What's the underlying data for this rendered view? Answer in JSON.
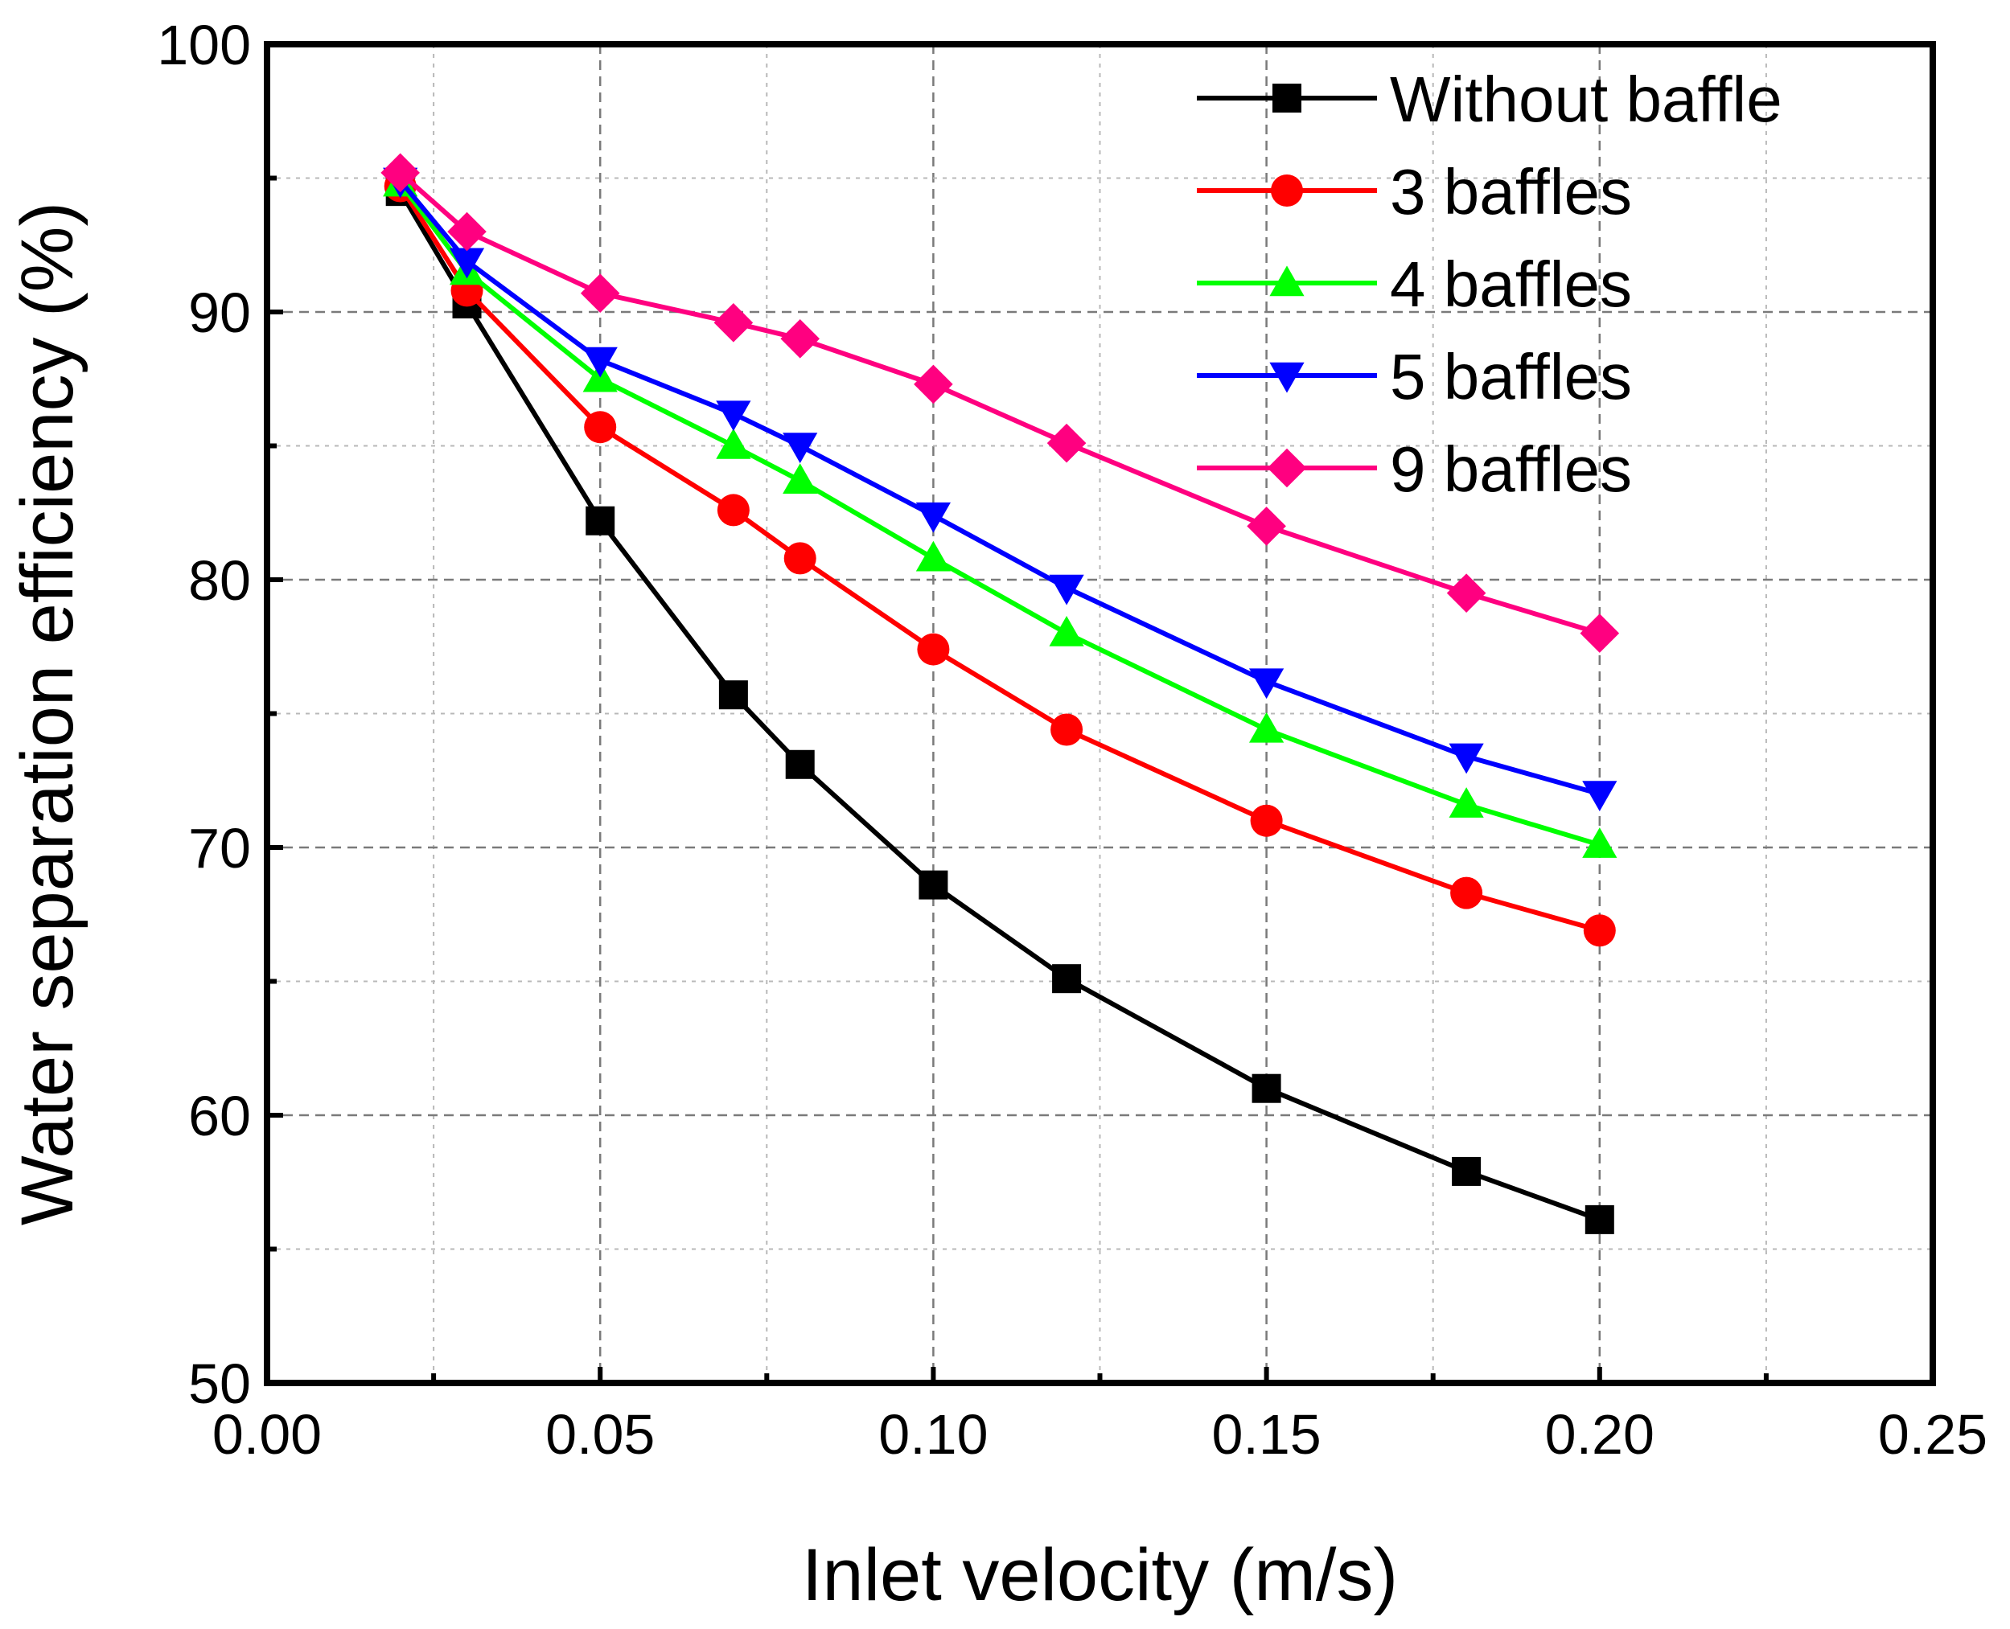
{
  "chart_data": {
    "type": "line",
    "xlabel": "Inlet velocity (m/s)",
    "ylabel": "Water separation efficiency (%)",
    "xlim": [
      0.0,
      0.25
    ],
    "ylim": [
      50,
      100
    ],
    "xticks": [
      "0.00",
      "0.05",
      "0.10",
      "0.15",
      "0.20",
      "0.25"
    ],
    "yticks": [
      "50",
      "60",
      "70",
      "80",
      "90",
      "100"
    ],
    "grid": true,
    "legend_position": "top-right",
    "x": [
      0.02,
      0.03,
      0.05,
      0.07,
      0.08,
      0.1,
      0.12,
      0.15,
      0.18,
      0.2
    ],
    "series": [
      {
        "name": "Without baffle",
        "color": "#000000",
        "marker": "square",
        "values": [
          94.5,
          90.3,
          82.2,
          75.7,
          73.1,
          68.6,
          65.1,
          61.0,
          57.9,
          56.1
        ]
      },
      {
        "name": "3 baffles",
        "color": "#ff0000",
        "marker": "circle",
        "values": [
          94.7,
          90.8,
          85.7,
          82.6,
          80.8,
          77.4,
          74.4,
          71.0,
          68.3,
          66.9
        ]
      },
      {
        "name": "4 baffles",
        "color": "#00ff00",
        "marker": "triangle-up",
        "values": [
          94.8,
          91.5,
          87.5,
          85.0,
          83.7,
          80.8,
          78.0,
          74.4,
          71.6,
          70.1
        ]
      },
      {
        "name": "5 baffles",
        "color": "#0000ff",
        "marker": "triangle-down",
        "values": [
          94.9,
          91.9,
          88.2,
          86.2,
          85.0,
          82.4,
          79.7,
          76.2,
          73.4,
          72.0
        ]
      },
      {
        "name": "9 baffles",
        "color": "#ff0080",
        "marker": "diamond",
        "values": [
          95.2,
          93.0,
          90.7,
          89.6,
          89.0,
          87.3,
          85.1,
          82.0,
          79.5,
          78.0
        ]
      }
    ]
  }
}
